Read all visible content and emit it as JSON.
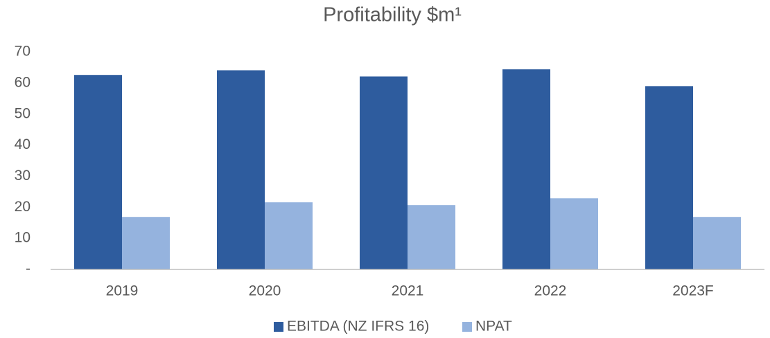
{
  "chart_data": {
    "type": "bar",
    "title": "Profitability $m¹",
    "categories": [
      "2019",
      "2020",
      "2021",
      "2022",
      "2023F"
    ],
    "series": [
      {
        "name": "EBITDA (NZ IFRS 16)",
        "color": "#2e5c9e",
        "values": [
          62.6,
          64.1,
          62.1,
          64.4,
          59.0
        ]
      },
      {
        "name": "NPAT",
        "color": "#95b3de",
        "values": [
          16.9,
          21.6,
          20.7,
          22.9,
          16.9
        ]
      }
    ],
    "ylim": [
      0,
      70
    ],
    "yticks": [
      {
        "value": 0,
        "label": "-"
      },
      10,
      20,
      30,
      40,
      50,
      60,
      70
    ],
    "grid": false,
    "legend": "bottom"
  }
}
